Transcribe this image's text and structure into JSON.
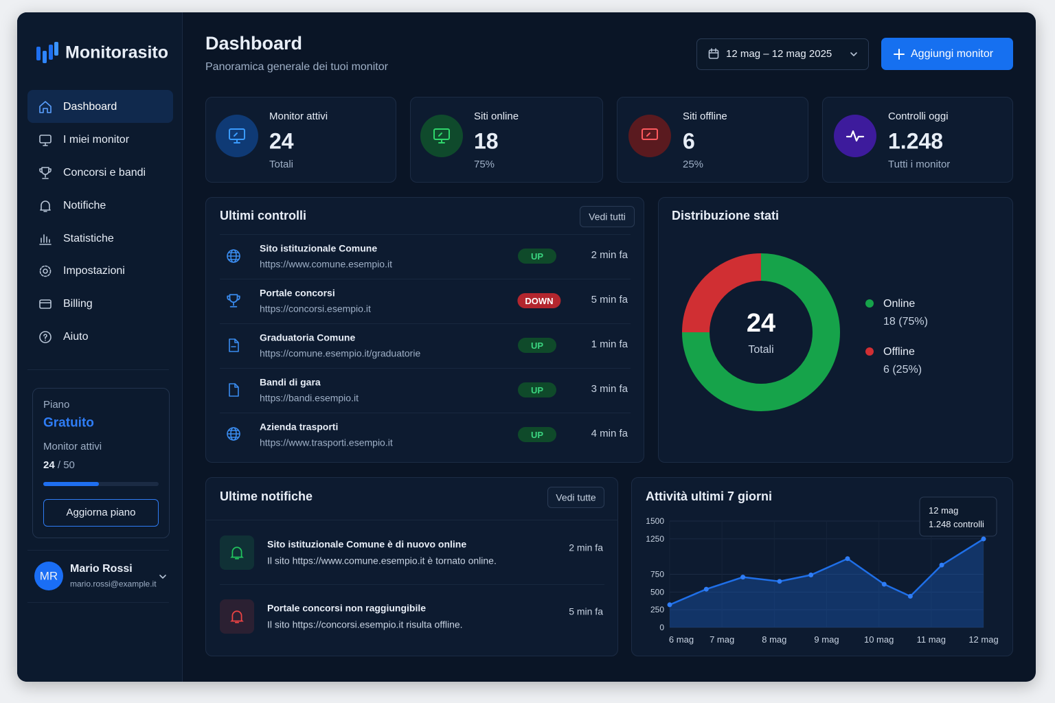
{
  "sidebar": {
    "brand": "Monitorasito",
    "nav": [
      "Dashboard",
      "I miei monitor",
      "Concorsi e bandi",
      "Notifiche",
      "Statistiche",
      "Impostazioni",
      "Billing",
      "Aiuto"
    ],
    "plan": {
      "label": "Piano",
      "name": "Gratuito",
      "usage_label": "Monitor attivi",
      "used": 24,
      "separator": "/",
      "limit": 50,
      "button": "Aggiorna piano"
    },
    "user": {
      "initials": "MR",
      "name": "Mario Rossi",
      "email": "mario.rossi@example.it"
    }
  },
  "header": {
    "title": "Dashboard",
    "subtitle": "Panoramica generale dei tuoi monitor",
    "date_range": "12 mag – 12 mag 2025",
    "add_button": "Aggiungi monitor"
  },
  "stats": [
    {
      "label": "Monitor attivi",
      "value": 24,
      "note": "Totali"
    },
    {
      "label": "Siti online",
      "value": 18,
      "note": "75%"
    },
    {
      "label": "Siti offline",
      "value": 6,
      "note": "25%"
    },
    {
      "label": "Controlli oggi",
      "value": "1.248",
      "note": "Tutti i monitor"
    }
  ],
  "checks": {
    "title": "Ultimi controlli",
    "button": "Vedi tutti",
    "rows": [
      {
        "name": "Sito istituzionale Comune",
        "url": "https://www.comune.esempio.it",
        "status": "UP",
        "color": "#0f4a2a",
        "time": "2 min fa"
      },
      {
        "name": "Portale concorsi",
        "url": "https://concorsi.esempio.it",
        "status": "DOWN",
        "color": "#b3262e",
        "time": "5 min fa"
      },
      {
        "name": "Graduatoria Comune",
        "url": "https://comune.esempio.it/graduatorie",
        "status": "UP",
        "color": "#0f4a2a",
        "time": "1 min fa"
      },
      {
        "name": "Bandi di gara",
        "url": "https://bandi.esempio.it",
        "status": "UP",
        "color": "#0f4a2a",
        "time": "3 min fa"
      },
      {
        "name": "Azienda trasporti",
        "url": "https://www.trasporti.esempio.it",
        "status": "UP",
        "color": "#0f4a2a",
        "time": "4 min fa"
      }
    ]
  },
  "notifications": {
    "title": "Ultime notifiche",
    "button": "Vedi tutte",
    "items": [
      {
        "title": "Sito istituzionale Comune è di nuovo online",
        "text": "Il sito https://www.comune.esempio.it è tornato online.",
        "time": "2 min fa",
        "color": "#22c55e"
      },
      {
        "title": "Portale concorsi non raggiungibile",
        "text": "Il sito https://concorsi.esempio.it risulta offline.",
        "time": "5 min fa",
        "color": "#ef4444"
      }
    ]
  },
  "chart_data": [
    {
      "type": "donut",
      "title": "Distribuzione stati",
      "categories": [
        "Online",
        "Offline"
      ],
      "values": [
        18,
        6
      ],
      "value_labels": [
        "18 (75%)",
        "6 (25%)"
      ],
      "colors": [
        "#16a34a",
        "#d02f33"
      ],
      "center_value": 24,
      "center_label": "Totali"
    },
    {
      "type": "line",
      "title": "Attività ultimi 7 giorni",
      "x": [
        0,
        0.7,
        1.4,
        2.1,
        2.7,
        3.4,
        4.1,
        4.6,
        5.2,
        6
      ],
      "values": [
        320,
        540,
        710,
        650,
        740,
        970,
        610,
        440,
        880,
        1248
      ],
      "color": "#1f6fe8",
      "xlim": [
        0,
        6
      ],
      "xticks": [
        {
          "value": 0,
          "label": "6 mag"
        },
        {
          "value": 1,
          "label": "7 mag"
        },
        {
          "value": 2,
          "label": "8 mag"
        },
        {
          "value": 3,
          "label": "9 mag"
        },
        {
          "value": 4,
          "label": "10 mag"
        },
        {
          "value": 5,
          "label": "11 mag"
        },
        {
          "value": 6,
          "label": "12 mag"
        }
      ],
      "ylim": [
        0,
        1500
      ],
      "yticks": [
        0,
        250,
        500,
        750,
        1250,
        1500
      ],
      "grid": true,
      "annotation": {
        "title": "12 mag",
        "text": "1.248 controlli"
      }
    }
  ]
}
